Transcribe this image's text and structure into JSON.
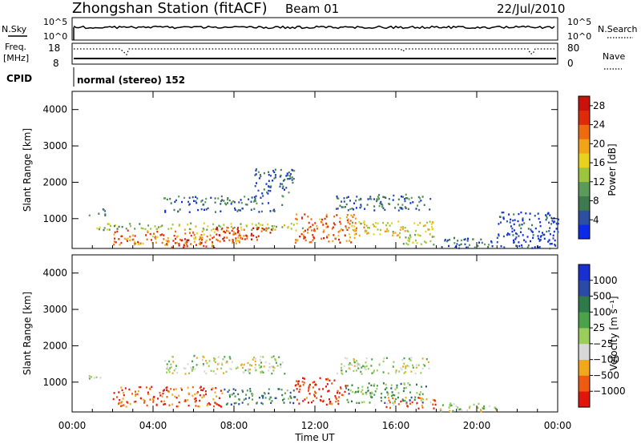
{
  "header": {
    "station": "Zhongshan Station (fitACF)",
    "beam": "Beam 01",
    "date": "22/Jul/2010"
  },
  "top_strips": {
    "nsky_label": "N.Sky",
    "nsky_ticks": [
      "10^5",
      "10^0"
    ],
    "nsearch_label": "N.Search",
    "nsearch_ticks": [
      "10^5",
      "10^0"
    ],
    "freq_label": "Freq.",
    "freq_unit": "[MHz]",
    "freq_ticks": [
      "18",
      "8"
    ],
    "nave_label": "Nave",
    "nave_ticks": [
      "80",
      "0"
    ],
    "cpid_label": "CPID",
    "cpid_value": "normal (stereo) 152"
  },
  "colors": {
    "power": [
      "#0b2be8",
      "#2d4fa0",
      "#3f7a4e",
      "#5b9a5b",
      "#9cc43c",
      "#e8d21e",
      "#f2a419",
      "#ee6b10",
      "#e02a0c",
      "#c8120a"
    ],
    "velocity": [
      "#e0150c",
      "#ef5a12",
      "#f2a81c",
      "#d8d8d8",
      "#9acd5a",
      "#4aa34a",
      "#2f7a4a",
      "#2b4aa8",
      "#1a2fd0"
    ]
  },
  "chart_data": [
    {
      "type": "heatmap",
      "panel": "power",
      "ylabel": "Slant Range [km]",
      "yticks": [
        "1000",
        "2000",
        "3000",
        "4000"
      ],
      "ylim": [
        180,
        4500
      ],
      "xlim": [
        0,
        24
      ],
      "colorbar": {
        "label": "Power [dB]",
        "ticks": [
          "4",
          "8",
          "12",
          "16",
          "20",
          "24",
          "28"
        ],
        "range": [
          0,
          30
        ]
      },
      "regions": [
        {
          "t0": 0.8,
          "t1": 1.6,
          "r0": 1100,
          "r1": 1300,
          "level": 0.28
        },
        {
          "t0": 1.2,
          "t1": 11.5,
          "r0": 700,
          "r1": 900,
          "level": 0.45
        },
        {
          "t0": 2.0,
          "t1": 8.5,
          "r0": 300,
          "r1": 700,
          "level": 0.72
        },
        {
          "t0": 7.0,
          "t1": 10.0,
          "r0": 400,
          "r1": 800,
          "level": 0.85
        },
        {
          "t0": 4.5,
          "t1": 7.0,
          "r0": 200,
          "r1": 500,
          "level": 0.8
        },
        {
          "t0": 4.5,
          "t1": 10.0,
          "r0": 1200,
          "r1": 1320,
          "level": 0.12
        },
        {
          "t0": 4.5,
          "t1": 10.5,
          "r0": 1400,
          "r1": 1650,
          "level": 0.22
        },
        {
          "t0": 9.0,
          "t1": 11.0,
          "r0": 1700,
          "r1": 2400,
          "level": 0.15
        },
        {
          "t0": 11.0,
          "t1": 14.0,
          "r0": 350,
          "r1": 1150,
          "level": 0.75
        },
        {
          "t0": 13.0,
          "t1": 17.7,
          "r0": 1250,
          "r1": 1700,
          "level": 0.2
        },
        {
          "t0": 13.5,
          "t1": 17.8,
          "r0": 550,
          "r1": 950,
          "level": 0.55
        },
        {
          "t0": 16.0,
          "t1": 18.0,
          "r0": 300,
          "r1": 600,
          "level": 0.5
        },
        {
          "t0": 18.0,
          "t1": 21.0,
          "r0": 200,
          "r1": 500,
          "level": 0.22
        },
        {
          "t0": 21.0,
          "t1": 24.0,
          "r0": 200,
          "r1": 1200,
          "level": 0.1
        }
      ]
    },
    {
      "type": "heatmap",
      "panel": "velocity",
      "ylabel": "Slant Range [km]",
      "yticks": [
        "1000",
        "2000",
        "3000",
        "4000"
      ],
      "ylim": [
        180,
        4500
      ],
      "xlim": [
        0,
        24
      ],
      "xlabel": "Time UT",
      "xticks": [
        "00:00",
        "04:00",
        "08:00",
        "12:00",
        "16:00",
        "20:00",
        "00:00"
      ],
      "colorbar": {
        "label": "Velocity [m s⁻¹]",
        "ticks": [
          "1000",
          "500",
          "100",
          "25",
          "−25",
          "−100",
          "−500",
          "−1000"
        ]
      },
      "regions": [
        {
          "t0": 0.8,
          "t1": 1.6,
          "r0": 1100,
          "r1": 1300,
          "level": 0.55
        },
        {
          "t0": 2.0,
          "t1": 7.5,
          "r0": 350,
          "r1": 900,
          "level": 0.15
        },
        {
          "t0": 7.5,
          "t1": 11.0,
          "r0": 400,
          "r1": 850,
          "level": 0.72
        },
        {
          "t0": 4.5,
          "t1": 10.5,
          "r0": 1250,
          "r1": 1750,
          "level": 0.45
        },
        {
          "t0": 11.0,
          "t1": 13.5,
          "r0": 400,
          "r1": 1150,
          "level": 0.08
        },
        {
          "t0": 13.0,
          "t1": 17.7,
          "r0": 1250,
          "r1": 1700,
          "level": 0.45
        },
        {
          "t0": 13.5,
          "t1": 17.5,
          "r0": 450,
          "r1": 1000,
          "level": 0.62
        },
        {
          "t0": 15.5,
          "t1": 18.0,
          "r0": 300,
          "r1": 600,
          "level": 0.18
        },
        {
          "t0": 18.0,
          "t1": 21.0,
          "r0": 200,
          "r1": 450,
          "level": 0.45
        }
      ]
    }
  ]
}
